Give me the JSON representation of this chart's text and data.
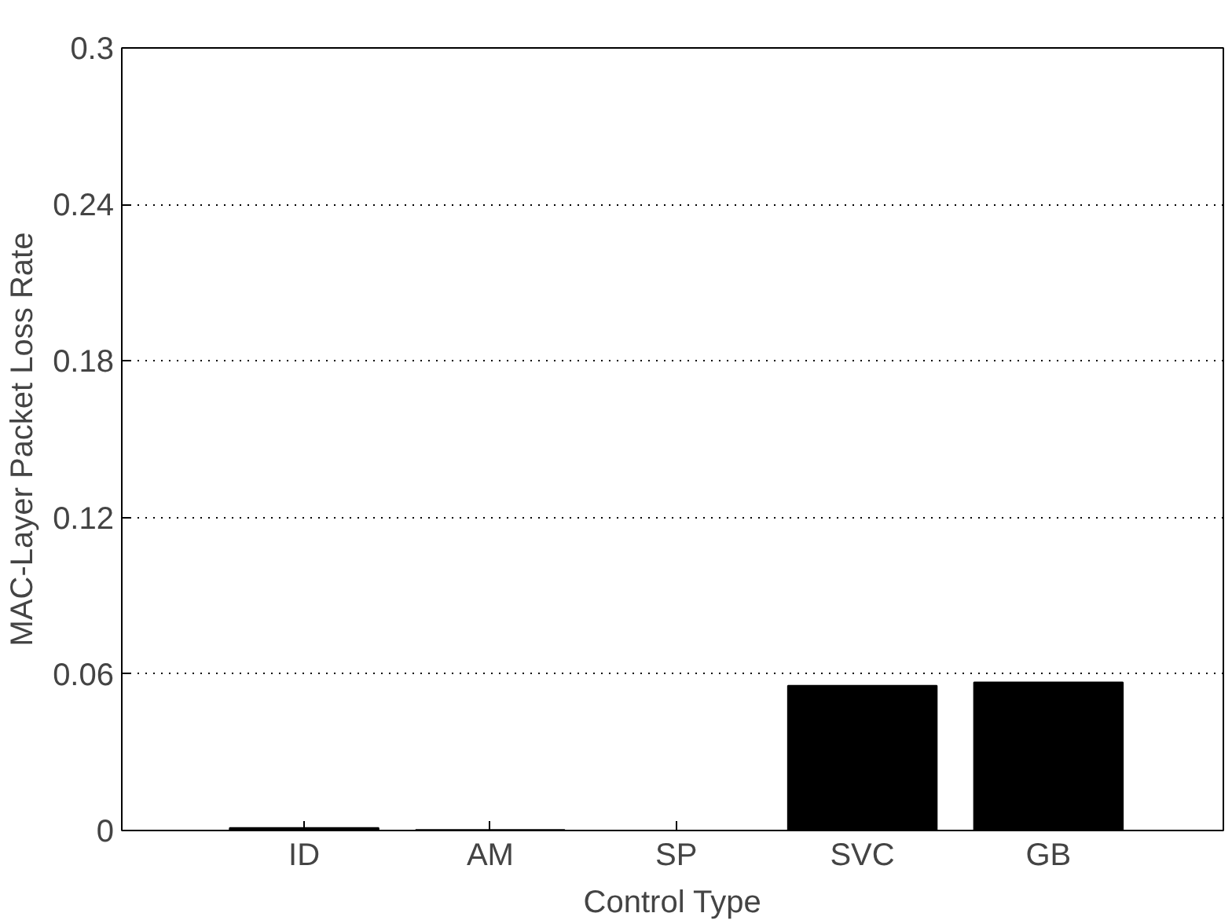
{
  "chart_data": {
    "type": "bar",
    "xlabel": "Control Type",
    "ylabel": "MAC-Layer Packet Loss Rate",
    "categories": [
      "ID",
      "AM",
      "SP",
      "SVC",
      "GB"
    ],
    "values": [
      0.001,
      0.0002,
      0,
      0.0555,
      0.0568
    ],
    "color": "#000000",
    "ylim": [
      0,
      0.3
    ],
    "yticks": [
      0,
      0.06,
      0.12,
      0.18,
      0.24,
      0.3
    ],
    "grid": "y"
  }
}
